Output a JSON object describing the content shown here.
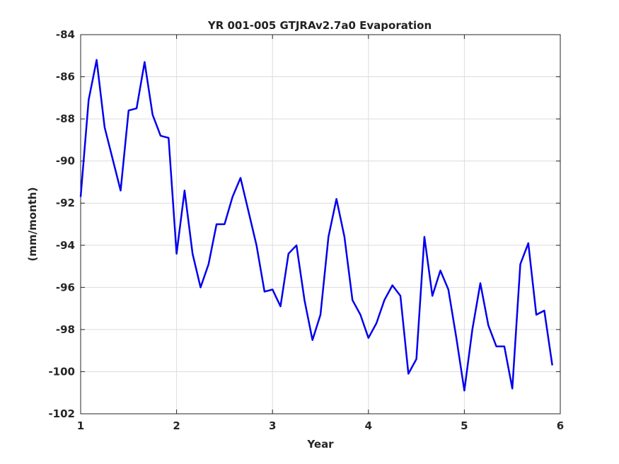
{
  "chart_data": {
    "type": "line",
    "title": "YR 001-005 GTJRAv2.7a0 Evaporation",
    "xlabel": "Year",
    "ylabel": "(mm/month)",
    "xlim": [
      1,
      6
    ],
    "ylim": [
      -102,
      -84
    ],
    "xticks": [
      1,
      2,
      3,
      4,
      5,
      6
    ],
    "yticks": [
      -84,
      -86,
      -88,
      -90,
      -92,
      -94,
      -96,
      -98,
      -100,
      -102
    ],
    "grid": true,
    "colors": {
      "series": "#0000ee",
      "axis": "#262626",
      "grid": "#dcdcdc"
    },
    "series": [
      {
        "x": [
          1.0,
          1.083,
          1.167,
          1.25,
          1.333,
          1.417,
          1.5,
          1.583,
          1.667,
          1.75,
          1.833,
          1.917,
          2.0,
          2.083,
          2.167,
          2.25,
          2.333,
          2.417,
          2.5,
          2.583,
          2.667,
          2.75,
          2.833,
          2.917,
          3.0,
          3.083,
          3.167,
          3.25,
          3.333,
          3.417,
          3.5,
          3.583,
          3.667,
          3.75,
          3.833,
          3.917,
          4.0,
          4.083,
          4.167,
          4.25,
          4.333,
          4.417,
          4.5,
          4.583,
          4.667,
          4.75,
          4.833,
          4.917,
          5.0,
          5.083,
          5.167,
          5.25,
          5.333,
          5.417,
          5.5,
          5.583,
          5.667,
          5.75,
          5.833,
          5.917
        ],
        "values": [
          -91.7,
          -87.1,
          -85.2,
          -88.4,
          -89.9,
          -91.4,
          -87.6,
          -87.5,
          -85.3,
          -87.8,
          -88.8,
          -88.9,
          -94.4,
          -91.4,
          -94.4,
          -96.0,
          -94.9,
          -93.0,
          -93.0,
          -91.7,
          -90.8,
          -92.4,
          -94.0,
          -96.2,
          -96.1,
          -96.9,
          -94.4,
          -94.0,
          -96.6,
          -98.5,
          -97.3,
          -93.6,
          -91.8,
          -93.6,
          -96.6,
          -97.3,
          -98.4,
          -97.7,
          -96.6,
          -95.9,
          -96.4,
          -100.1,
          -99.4,
          -93.6,
          -96.4,
          -95.2,
          -96.1,
          -98.4,
          -100.9,
          -98.0,
          -95.8,
          -97.8,
          -98.8,
          -98.8,
          -100.8,
          -94.9,
          -93.9,
          -97.3,
          -97.1,
          -99.7
        ]
      }
    ]
  }
}
